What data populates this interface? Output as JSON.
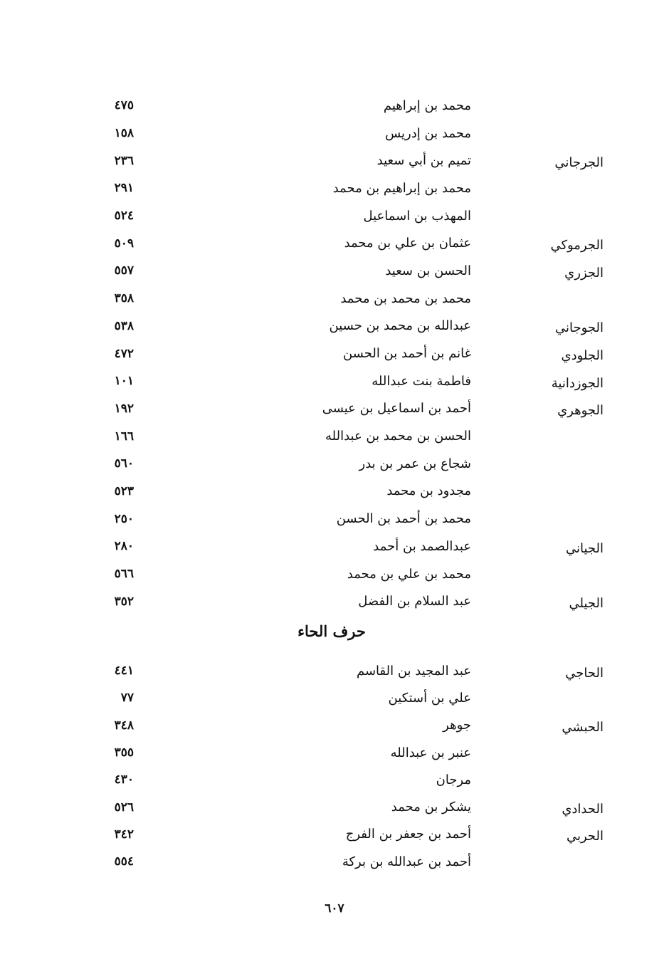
{
  "section1": {
    "rows": [
      {
        "nisba": "",
        "name": "محمد بن إبراهيم",
        "page": "٤٧٥"
      },
      {
        "nisba": "",
        "name": "محمد بن إدريس",
        "page": "١٥٨"
      },
      {
        "nisba": "الجرجاني",
        "name": "تميم بن أبي سعيد",
        "page": "٢٣٦"
      },
      {
        "nisba": "",
        "name": "محمد بن إبراهيم بن محمد",
        "page": "٢٩١"
      },
      {
        "nisba": "",
        "name": "المهذب بن اسماعيل",
        "page": "٥٢٤"
      },
      {
        "nisba": "الجرموكي",
        "name": "عثمان بن علي بن محمد",
        "page": "٥٠٩"
      },
      {
        "nisba": "الجزري",
        "name": "الحسن بن سعيد",
        "page": "٥٥٧"
      },
      {
        "nisba": "",
        "name": "محمد بن محمد بن محمد",
        "page": "٣٥٨"
      },
      {
        "nisba": "الجوجاني",
        "name": "عبدالله بن محمد بن حسين",
        "page": "٥٣٨"
      },
      {
        "nisba": "الجلودي",
        "name": "غانم بن أحمد بن الحسن",
        "page": "٤٧٢"
      },
      {
        "nisba": "الجوزدانية",
        "name": "فاطمة بنت عبدالله",
        "page": "١٠١"
      },
      {
        "nisba": "الجوهري",
        "name": "أحمد بن اسماعيل بن عيسى",
        "page": "١٩٢"
      },
      {
        "nisba": "",
        "name": "الحسن بن محمد بن عبدالله",
        "page": "١٦٦"
      },
      {
        "nisba": "",
        "name": "شجاع بن عمر بن بدر",
        "page": "٥٦٠"
      },
      {
        "nisba": "",
        "name": "مجدود بن محمد",
        "page": "٥٢٣"
      },
      {
        "nisba": "",
        "name": "محمد بن أحمد بن الحسن",
        "page": "٢٥٠"
      },
      {
        "nisba": "الجياني",
        "name": "عبدالصمد بن أحمد",
        "page": "٢٨٠"
      },
      {
        "nisba": "",
        "name": "محمد بن علي بن محمد",
        "page": "٥٦٦"
      },
      {
        "nisba": "الجيلي",
        "name": "عبد السلام بن الفضل",
        "page": "٣٥٢"
      }
    ]
  },
  "section2": {
    "heading": "حرف الحاء",
    "rows": [
      {
        "nisba": "الحاجي",
        "name": "عبد المجيد بن القاسم",
        "page": "٤٤١"
      },
      {
        "nisba": "",
        "name": "علي بن أستكين",
        "page": "٧٧"
      },
      {
        "nisba": "الحبشي",
        "name": "جوهر",
        "page": "٣٤٨"
      },
      {
        "nisba": "",
        "name": "عنبر بن عبدالله",
        "page": "٣٥٥"
      },
      {
        "nisba": "",
        "name": "مرجان",
        "page": "٤٣٠"
      },
      {
        "nisba": "الحدادي",
        "name": "يشكر بن محمد",
        "page": "٥٢٦"
      },
      {
        "nisba": "الحربي",
        "name": "أحمد بن جعفر بن الفرج",
        "page": "٣٤٢"
      },
      {
        "nisba": "",
        "name": "أحمد بن عبدالله بن بركة",
        "page": "٥٥٤"
      }
    ]
  },
  "page_number": "٦٠٧"
}
